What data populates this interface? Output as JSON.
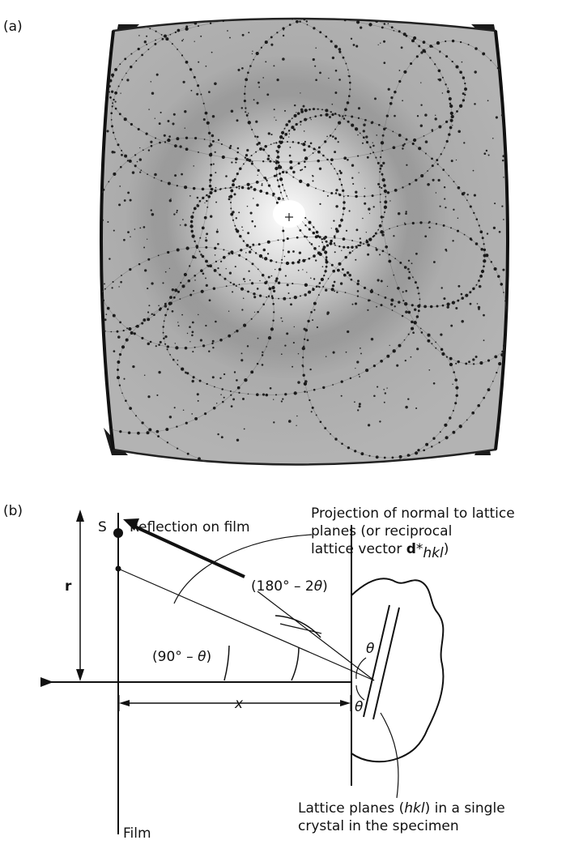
{
  "panel_a": {
    "label": "(a)"
  },
  "panel_b": {
    "label": "(b)",
    "source_label": "S",
    "reflection_label": "Reflection on film",
    "projection_lines": [
      "Projection of normal to lattice",
      "planes (or reciprocal",
      "lattice vector "
    ],
    "projection_vector_bold": "d",
    "projection_vector_star": "*",
    "projection_vector_sub": "hkl",
    "projection_vector_close": ")",
    "r_label": "r",
    "angle_180_prefix": "(180° – 2",
    "angle_180_theta": "θ",
    "angle_180_suffix": ")",
    "angle_90_prefix": "(90° – ",
    "angle_90_theta": "θ",
    "angle_90_suffix": ")",
    "theta_top": "θ",
    "theta_bottom": "θ",
    "x_label": "x",
    "lattice_lines_prefix": "Lattice planes (",
    "lattice_hkl": "hkl",
    "lattice_suffix": ") in a single",
    "lattice_line2": "crystal in the specimen",
    "film_label": "Film"
  },
  "colors": {
    "film_background": "#a9a9a9",
    "film_corner": "#1a1a1a",
    "line": "#111111"
  }
}
